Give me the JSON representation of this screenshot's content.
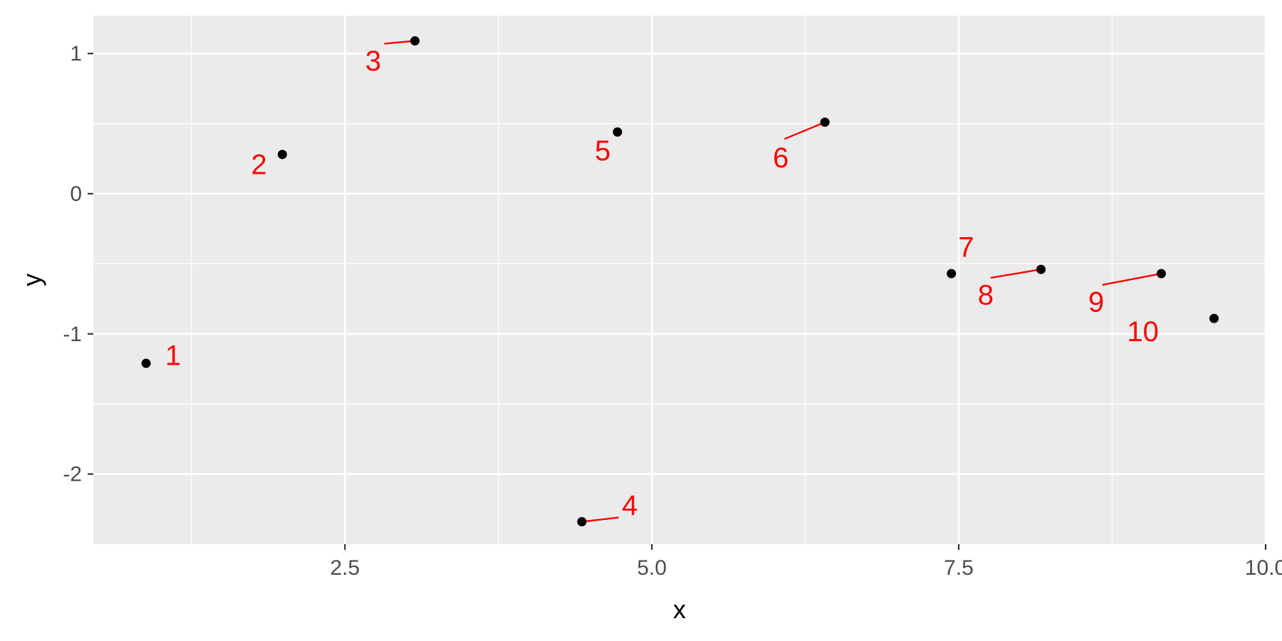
{
  "chart_data": {
    "type": "scatter",
    "title": "",
    "xlabel": "x",
    "ylabel": "y",
    "xlim": [
      0.45,
      10.0
    ],
    "ylim": [
      -2.5,
      1.27
    ],
    "x_ticks": [
      2.5,
      5.0,
      7.5,
      10.0
    ],
    "x_tick_labels": [
      "2.5",
      "5.0",
      "7.5",
      "10.0"
    ],
    "y_ticks": [
      -2,
      -1,
      0,
      1
    ],
    "y_tick_labels": [
      "-2",
      "-1",
      "0",
      "1"
    ],
    "grid": true,
    "panel_background": "#ebebeb",
    "gridline_color": "#ffffff",
    "point_color": "#000000",
    "label_color": "#ff0000",
    "points": [
      {
        "label": "1",
        "x": 0.88,
        "y": -1.21,
        "label_x": 1.1,
        "label_y": -1.15
      },
      {
        "label": "2",
        "x": 1.99,
        "y": 0.28,
        "label_x": 1.8,
        "label_y": 0.21
      },
      {
        "label": "3",
        "x": 3.07,
        "y": 1.09,
        "label_x": 2.73,
        "label_y": 0.95
      },
      {
        "label": "4",
        "x": 4.43,
        "y": -2.34,
        "label_x": 4.82,
        "label_y": -2.22
      },
      {
        "label": "5",
        "x": 4.72,
        "y": 0.44,
        "label_x": 4.6,
        "label_y": 0.31
      },
      {
        "label": "6",
        "x": 6.41,
        "y": 0.51,
        "label_x": 6.05,
        "label_y": 0.26
      },
      {
        "label": "7",
        "x": 7.44,
        "y": -0.57,
        "label_x": 7.56,
        "label_y": -0.38
      },
      {
        "label": "8",
        "x": 8.17,
        "y": -0.54,
        "label_x": 7.72,
        "label_y": -0.72
      },
      {
        "label": "9",
        "x": 9.15,
        "y": -0.57,
        "label_x": 8.62,
        "label_y": -0.77
      },
      {
        "label": "10",
        "x": 9.58,
        "y": -0.89,
        "label_x": 9.0,
        "label_y": -0.98
      }
    ],
    "connectors": [
      {
        "point": "3",
        "from_x": 2.82,
        "from_y": 1.07,
        "to_x": 3.07,
        "to_y": 1.09
      },
      {
        "point": "4",
        "from_x": 4.73,
        "from_y": -2.31,
        "to_x": 4.43,
        "to_y": -2.34
      },
      {
        "point": "6",
        "from_x": 6.08,
        "from_y": 0.39,
        "to_x": 6.41,
        "to_y": 0.51
      },
      {
        "point": "8",
        "from_x": 7.76,
        "from_y": -0.6,
        "to_x": 8.17,
        "to_y": -0.54
      },
      {
        "point": "9",
        "from_x": 8.67,
        "from_y": -0.65,
        "to_x": 9.15,
        "to_y": -0.57
      }
    ]
  }
}
